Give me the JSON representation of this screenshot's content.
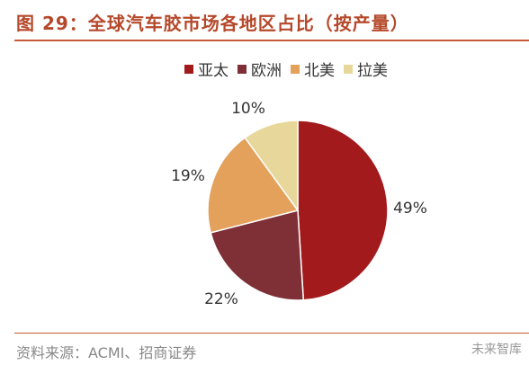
{
  "header": {
    "title": "图 29：全球汽车胶市场各地区占比（按产量）"
  },
  "chart_data": {
    "type": "pie",
    "categories": [
      "亚太",
      "欧洲",
      "北美",
      "拉美"
    ],
    "values": [
      49,
      22,
      19,
      10
    ],
    "labels": [
      "49%",
      "22%",
      "19%",
      "10%"
    ],
    "colors": [
      "#a31a1c",
      "#7e3036",
      "#e3a15c",
      "#e8d79b"
    ],
    "legend_position": "top"
  },
  "footer": {
    "source": "资料来源：ACMI、招商证券",
    "watermark": "未来智库"
  }
}
